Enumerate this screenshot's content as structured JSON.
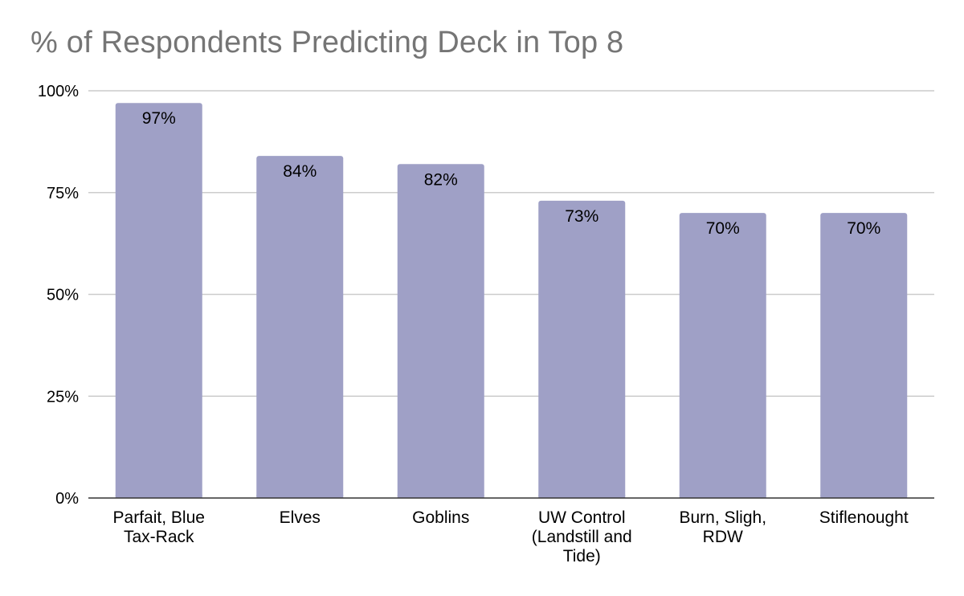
{
  "chart_data": {
    "type": "bar",
    "title": "% of Respondents Predicting Deck in Top 8",
    "xlabel": "",
    "ylabel": "",
    "categories": [
      [
        "Parfait, Blue",
        "Tax-Rack"
      ],
      [
        "Elves"
      ],
      [
        "Goblins"
      ],
      [
        "UW Control",
        "(Landstill and",
        "Tide)"
      ],
      [
        "Burn, Sligh,",
        "RDW"
      ],
      [
        "Stiflenought"
      ]
    ],
    "values": [
      97,
      84,
      82,
      73,
      70,
      70
    ],
    "value_labels": [
      "97%",
      "84%",
      "82%",
      "73%",
      "70%",
      "70%"
    ],
    "ylim": [
      0,
      100
    ],
    "y_ticks": [
      0,
      25,
      50,
      75,
      100
    ],
    "y_tick_labels": [
      "0%",
      "25%",
      "50%",
      "75%",
      "100%"
    ],
    "grid": true,
    "bar_color": "#9fa0c6"
  }
}
